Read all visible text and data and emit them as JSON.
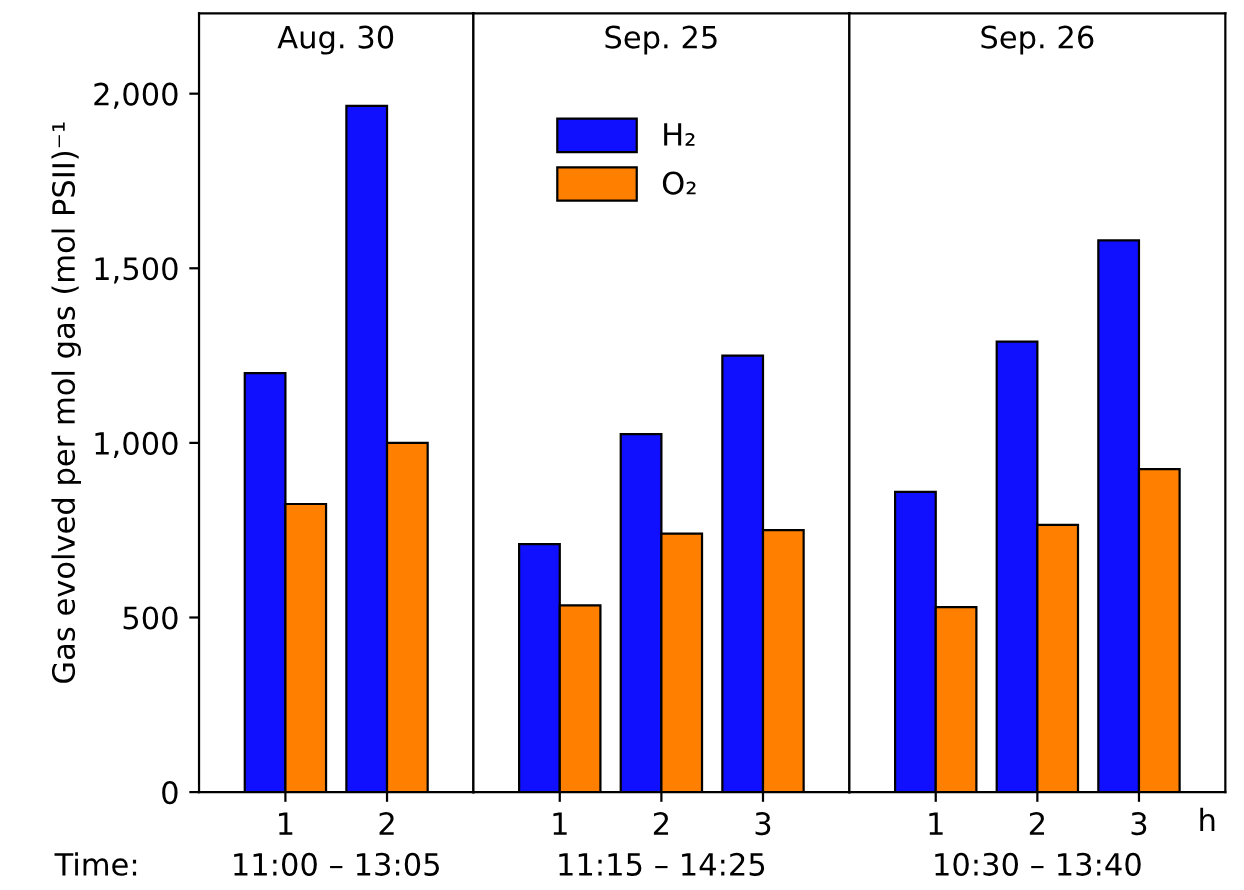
{
  "chart_data": [
    {
      "type": "bar",
      "title": "Aug. 30",
      "xlabel": "11:00 – 13:05",
      "ylabel": "Gas evolved per mol gas (mol PSII)⁻¹",
      "categories": [
        "1",
        "2"
      ],
      "series": [
        {
          "color": "#1010ff",
          "values": [
            1200,
            1965
          ]
        },
        {
          "color": "#ff8000",
          "values": [
            825,
            1000
          ]
        }
      ],
      "ylim": [
        0,
        2230
      ],
      "yticks": [
        0,
        {
          "value": 500,
          "label": "500"
        },
        {
          "value": 1000,
          "label": "1,000"
        },
        {
          "value": 1500,
          "label": "1,500"
        },
        {
          "value": 2000,
          "label": "2,000"
        }
      ],
      "annotations": [
        "Time:"
      ]
    },
    {
      "type": "bar",
      "title": "Sep. 25",
      "xlabel": "11:15 – 14:25",
      "categories": [
        "1",
        "2",
        "3"
      ],
      "series": [
        {
          "name": "H₂",
          "color": "#1010ff",
          "values": [
            710,
            1025,
            1250
          ]
        },
        {
          "name": "O₂",
          "color": "#ff8000",
          "values": [
            535,
            740,
            750
          ]
        }
      ],
      "ylim": [
        0,
        2230
      ],
      "tick_labels": "x",
      "legend": "top left"
    },
    {
      "type": "bar",
      "title": "Sep. 26",
      "xlabel": "10:30 – 13:40",
      "categories": [
        "1",
        "2",
        "3"
      ],
      "series": [
        {
          "color": "#1010ff",
          "values": [
            860,
            1290,
            1580
          ]
        },
        {
          "color": "#ff8000",
          "values": [
            530,
            765,
            925
          ]
        }
      ],
      "ylim": [
        0,
        2230
      ],
      "tick_labels": "x",
      "annotations": [
        "h"
      ]
    }
  ]
}
